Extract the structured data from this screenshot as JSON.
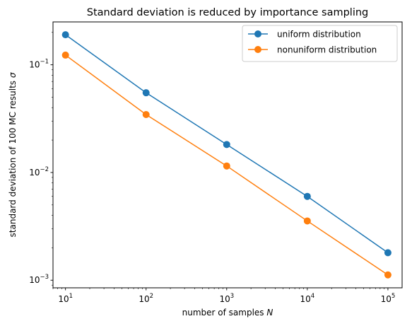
{
  "chart_data": {
    "type": "line",
    "title": "Standard deviation is reduced by importance sampling",
    "xlabel_prefix": "number of samples ",
    "xlabel_var": "N",
    "ylabel_prefix": "standard deviation of 100 MC results ",
    "ylabel_var": "σ",
    "x_scale": "log",
    "y_scale": "log",
    "xlim": [
      7,
      150000
    ],
    "ylim": [
      0.00085,
      0.25
    ],
    "grid": false,
    "legend_position": "top-right",
    "x": [
      10,
      100,
      1000,
      10000,
      100000
    ],
    "series": [
      {
        "name": "uniform distribution",
        "color": "#1f77b4",
        "values": [
          0.19,
          0.055,
          0.0182,
          0.006,
          0.0018
        ]
      },
      {
        "name": "nonuniform distribution",
        "color": "#ff7f0e",
        "values": [
          0.123,
          0.0345,
          0.0115,
          0.00355,
          0.00112
        ]
      }
    ],
    "x_ticks": [
      {
        "value": 10,
        "base": "10",
        "exp": "1"
      },
      {
        "value": 100,
        "base": "10",
        "exp": "2"
      },
      {
        "value": 1000,
        "base": "10",
        "exp": "3"
      },
      {
        "value": 10000,
        "base": "10",
        "exp": "4"
      },
      {
        "value": 100000,
        "base": "10",
        "exp": "5"
      }
    ],
    "y_ticks": [
      {
        "value": 0.1,
        "base": "10",
        "exp": "−1"
      },
      {
        "value": 0.01,
        "base": "10",
        "exp": "−2"
      },
      {
        "value": 0.001,
        "base": "10",
        "exp": "−3"
      }
    ]
  }
}
